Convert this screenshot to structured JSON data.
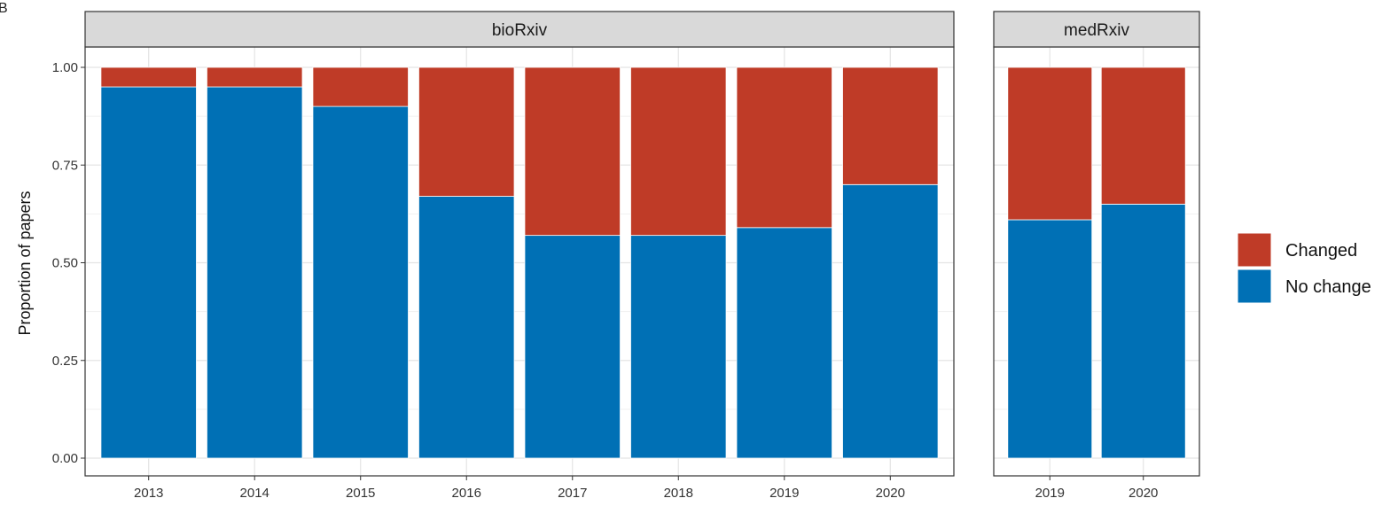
{
  "panel_tag": "B",
  "chart_data": {
    "type": "bar",
    "stacked": true,
    "ylabel": "Proportion of papers",
    "ylim": [
      0,
      1
    ],
    "yticks": [
      "0.00",
      "0.25",
      "0.50",
      "0.75",
      "1.00"
    ],
    "grid": true,
    "legend_position": "right",
    "legend": [
      {
        "name": "Changed",
        "color": "#bf3b27"
      },
      {
        "name": "No change",
        "color": "#0070b5"
      }
    ],
    "facets": [
      {
        "label": "bioRxiv",
        "categories": [
          "2013",
          "2014",
          "2015",
          "2016",
          "2017",
          "2018",
          "2019",
          "2020"
        ],
        "series": [
          {
            "name": "No change",
            "values": [
              0.95,
              0.95,
              0.9,
              0.67,
              0.57,
              0.57,
              0.59,
              0.7
            ]
          },
          {
            "name": "Changed",
            "values": [
              0.05,
              0.05,
              0.1,
              0.33,
              0.43,
              0.43,
              0.41,
              0.3
            ]
          }
        ]
      },
      {
        "label": "medRxiv",
        "categories": [
          "2019",
          "2020"
        ],
        "series": [
          {
            "name": "No change",
            "values": [
              0.61,
              0.65
            ]
          },
          {
            "name": "Changed",
            "values": [
              0.39,
              0.35
            ]
          }
        ]
      }
    ]
  }
}
